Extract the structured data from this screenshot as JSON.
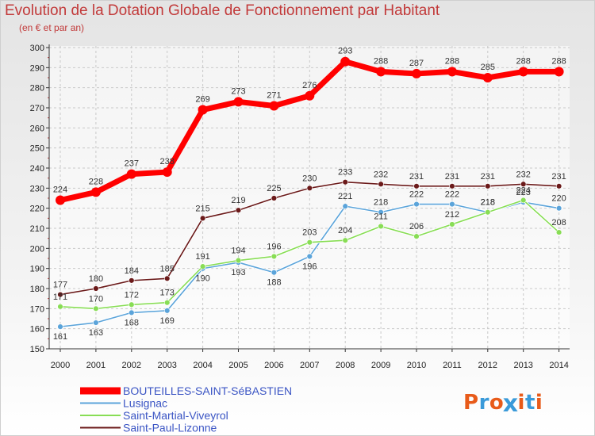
{
  "chart_data": {
    "type": "line",
    "title": "Evolution de la Dotation Globale de Fonctionnement par Habitant",
    "subtitle": "(en € et par an)",
    "xlabel": "",
    "ylabel": "",
    "ylim": [
      150,
      300
    ],
    "yticks": [
      150,
      160,
      170,
      180,
      190,
      200,
      210,
      220,
      230,
      240,
      250,
      260,
      270,
      280,
      290,
      300
    ],
    "categories": [
      "2000",
      "2001",
      "2002",
      "2003",
      "2004",
      "2005",
      "2006",
      "2007",
      "2008",
      "2009",
      "2010",
      "2011",
      "2012",
      "2013",
      "2014"
    ],
    "legend_position": "bottom-left",
    "series": [
      {
        "name": "BOUTEILLES-SAINT-SéBASTIEN",
        "color": "#ff0000",
        "width": "thick",
        "values": [
          224,
          228,
          237,
          238,
          269,
          273,
          271,
          276,
          293,
          288,
          287,
          288,
          285,
          288,
          288
        ]
      },
      {
        "name": "Lusignac",
        "color": "#5ba4da",
        "width": "thin",
        "values": [
          161,
          163,
          168,
          169,
          190,
          193,
          188,
          196,
          221,
          218,
          222,
          222,
          218,
          223,
          220
        ]
      },
      {
        "name": "Saint-Martial-Viveyrol",
        "color": "#88dd55",
        "width": "thin",
        "values": [
          171,
          170,
          172,
          173,
          191,
          194,
          196,
          203,
          204,
          211,
          206,
          212,
          218,
          224,
          208
        ]
      },
      {
        "name": "Saint-Paul-Lizonne",
        "color": "#6b1a1a",
        "width": "thin",
        "values": [
          177,
          180,
          184,
          185,
          215,
          219,
          225,
          230,
          233,
          232,
          231,
          231,
          231,
          232,
          231
        ]
      }
    ]
  },
  "logo": {
    "text": "Proxiti",
    "colors": [
      "#e85b1a",
      "#3a9ad9",
      "#e85b1a",
      "#3a9ad9",
      "#e85b1a",
      "#3a9ad9",
      "#e85b1a"
    ]
  }
}
